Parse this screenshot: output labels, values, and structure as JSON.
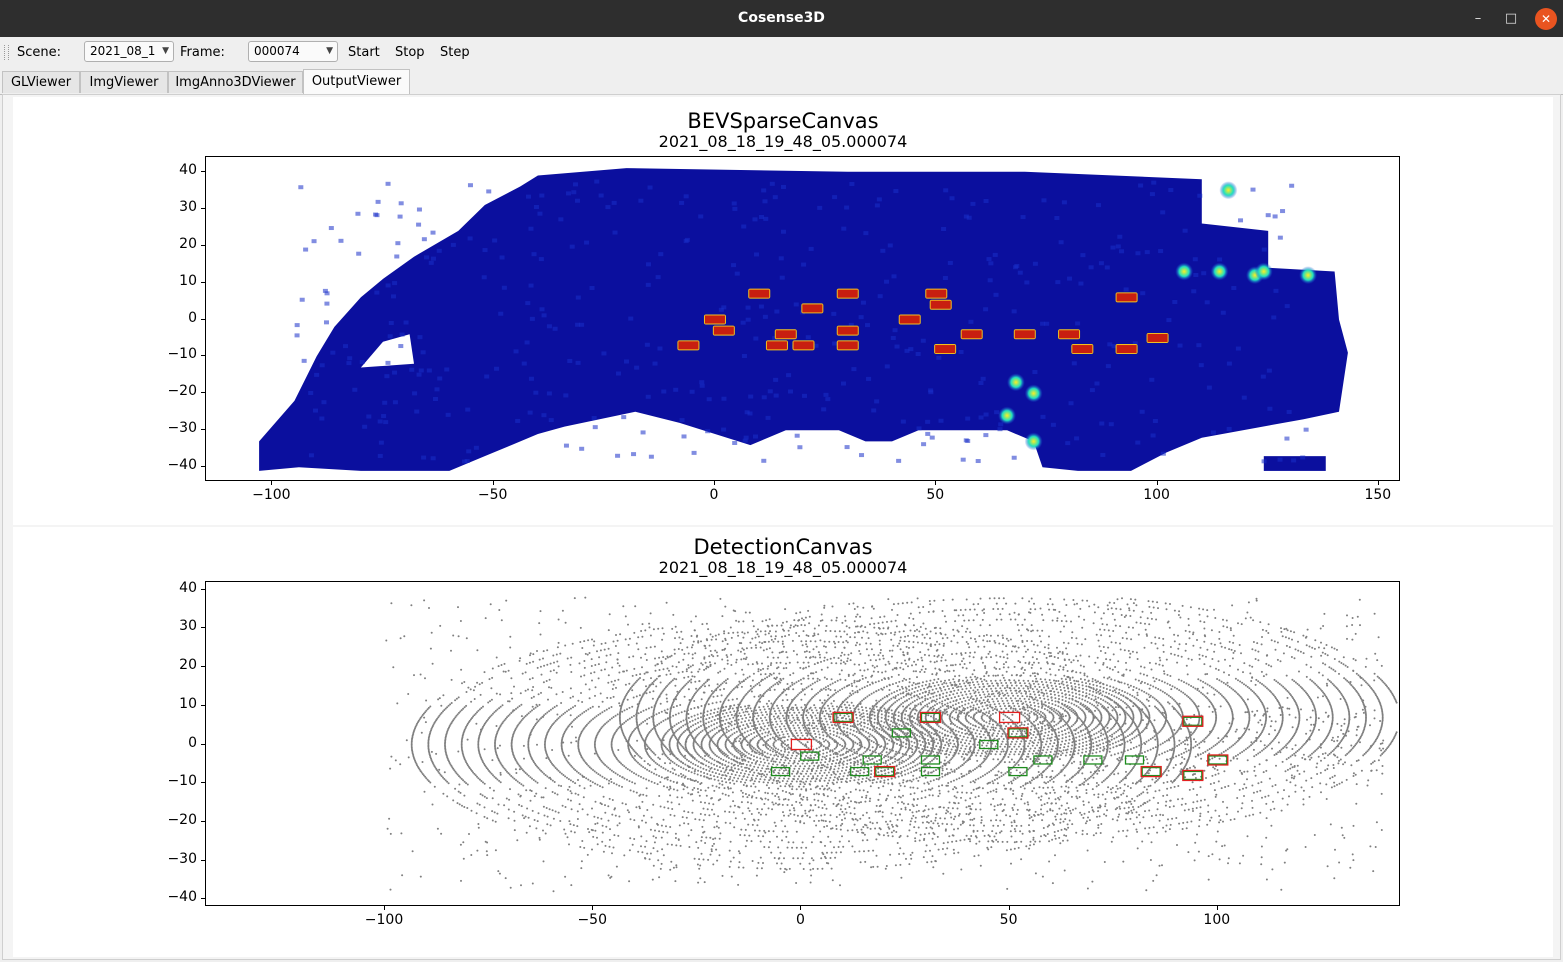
{
  "window": {
    "title": "Cosense3D",
    "minimize": "–",
    "maximize": "□",
    "close": "✕"
  },
  "toolbar": {
    "scene_label": "Scene:",
    "scene_value": "2021_08_1",
    "frame_label": "Frame:",
    "frame_value": "000074",
    "start_label": "Start",
    "stop_label": "Stop",
    "step_label": "Step",
    "dropdown_icon": "chevron-down-icon"
  },
  "tabs": [
    {
      "label": "GLViewer",
      "active": false
    },
    {
      "label": "ImgViewer",
      "active": false
    },
    {
      "label": "ImgAnno3DViewer",
      "active": false
    },
    {
      "label": "OutputViewer",
      "active": true
    }
  ],
  "colors": {
    "bev_background": "#0b0f9e",
    "bev_hot": "#c81e10",
    "points": "#7f7f7f",
    "gt_box": "#1e8c1e",
    "pred_box": "#e32020"
  },
  "chart_data": [
    {
      "type": "heatmap",
      "title": "BEVSparseCanvas",
      "subtitle": "2021_08_18_19_48_05.000074",
      "xlim": [
        -115,
        155
      ],
      "ylim": [
        -44,
        44
      ],
      "xticks": [
        -100,
        -50,
        0,
        50,
        100,
        150
      ],
      "xtick_labels": [
        "−100",
        "−50",
        "0",
        "50",
        "100",
        "150"
      ],
      "yticks": [
        40,
        30,
        20,
        10,
        0,
        -10,
        -20,
        -30,
        -40
      ],
      "ytick_labels": [
        "40",
        "30",
        "20",
        "10",
        "0",
        "−10",
        "−20",
        "−30",
        "−40"
      ],
      "coverage_polygon": [
        [
          -103,
          -41
        ],
        [
          -103,
          -33
        ],
        [
          -95,
          -22
        ],
        [
          -90,
          -10
        ],
        [
          -86,
          -2
        ],
        [
          -80,
          6
        ],
        [
          -75,
          11
        ],
        [
          -68,
          17
        ],
        [
          -58,
          24
        ],
        [
          -52,
          31
        ],
        [
          -44,
          36
        ],
        [
          -40,
          39
        ],
        [
          -20,
          41
        ],
        [
          30,
          40
        ],
        [
          70,
          40
        ],
        [
          110,
          38
        ],
        [
          110,
          26
        ],
        [
          125,
          24
        ],
        [
          125,
          14
        ],
        [
          140,
          13
        ],
        [
          141,
          0
        ],
        [
          143,
          -9
        ],
        [
          141,
          -25
        ],
        [
          133,
          -27
        ],
        [
          110,
          -32
        ],
        [
          102,
          -36
        ],
        [
          94,
          -41
        ],
        [
          82,
          -41
        ],
        [
          74,
          -40
        ],
        [
          72,
          -33
        ],
        [
          66,
          -30
        ],
        [
          56,
          -30
        ],
        [
          46,
          -30
        ],
        [
          40,
          -33
        ],
        [
          34,
          -33
        ],
        [
          28,
          -30
        ],
        [
          16,
          -30
        ],
        [
          8,
          -34
        ],
        [
          0,
          -31
        ],
        [
          -8,
          -28
        ],
        [
          -18,
          -25
        ],
        [
          -34,
          -29
        ],
        [
          -40,
          -31
        ],
        [
          -46,
          -34
        ],
        [
          -52,
          -37
        ],
        [
          -60,
          -41
        ],
        [
          -80,
          -41
        ],
        [
          -94,
          -40
        ]
      ],
      "hole_polygons": [
        [
          [
            -80,
            -13
          ],
          [
            -75,
            -6
          ],
          [
            -69,
            -4
          ],
          [
            -68,
            -12
          ]
        ]
      ],
      "hotspots": [
        [
          -6,
          -7
        ],
        [
          0,
          0
        ],
        [
          2,
          -3
        ],
        [
          10,
          7
        ],
        [
          14,
          -7
        ],
        [
          16,
          -4
        ],
        [
          20,
          -7
        ],
        [
          22,
          3
        ],
        [
          30,
          7
        ],
        [
          30,
          -3
        ],
        [
          30,
          -7
        ],
        [
          44,
          0
        ],
        [
          50,
          7
        ],
        [
          51,
          4
        ],
        [
          52,
          -8
        ],
        [
          58,
          -4
        ],
        [
          70,
          -4
        ],
        [
          80,
          -4
        ],
        [
          83,
          -8
        ],
        [
          93,
          6
        ],
        [
          93,
          -8
        ],
        [
          100,
          -5
        ]
      ],
      "bright_spots": [
        [
          116,
          35
        ],
        [
          114,
          13
        ],
        [
          106,
          13
        ],
        [
          122,
          12
        ],
        [
          68,
          -17
        ],
        [
          72,
          -20
        ],
        [
          66,
          -26
        ],
        [
          72,
          -33
        ],
        [
          124,
          13
        ],
        [
          134,
          12
        ]
      ],
      "extra_block": [
        [
          124,
          -37
        ],
        [
          138,
          -41
        ]
      ]
    },
    {
      "type": "scatter",
      "title": "DetectionCanvas",
      "subtitle": "2021_08_18_19_48_05.000074",
      "xlim": [
        -143,
        144
      ],
      "ylim": [
        -42,
        42
      ],
      "xticks": [
        -100,
        -50,
        0,
        50,
        100
      ],
      "xtick_labels": [
        "−100",
        "−50",
        "0",
        "50",
        "100"
      ],
      "yticks": [
        40,
        30,
        20,
        10,
        0,
        -10,
        -20,
        -30,
        -40
      ],
      "ytick_labels": [
        "40",
        "30",
        "20",
        "10",
        "0",
        "−10",
        "−20",
        "−30",
        "−40"
      ],
      "series": [
        {
          "kind": "ground_truth",
          "centers": [
            [
              -5,
              -7
            ],
            [
              2,
              -3
            ],
            [
              10,
              7
            ],
            [
              14,
              -7
            ],
            [
              17,
              -4
            ],
            [
              20,
              -7
            ],
            [
              24,
              3
            ],
            [
              31,
              7
            ],
            [
              31,
              -7
            ],
            [
              31,
              -4
            ],
            [
              45,
              0
            ],
            [
              52,
              3
            ],
            [
              52,
              -7
            ],
            [
              58,
              -4
            ],
            [
              70,
              -4
            ],
            [
              80,
              -4
            ],
            [
              84,
              -7
            ],
            [
              94,
              6
            ],
            [
              94,
              -8
            ],
            [
              100,
              -4
            ]
          ]
        },
        {
          "kind": "prediction",
          "centers": [
            [
              0,
              0
            ],
            [
              10,
              7
            ],
            [
              20,
              -7
            ],
            [
              31,
              7
            ],
            [
              50,
              7
            ],
            [
              52,
              3
            ],
            [
              84,
              -7
            ],
            [
              94,
              6
            ],
            [
              94,
              -8
            ],
            [
              100,
              -4
            ]
          ]
        }
      ]
    }
  ]
}
